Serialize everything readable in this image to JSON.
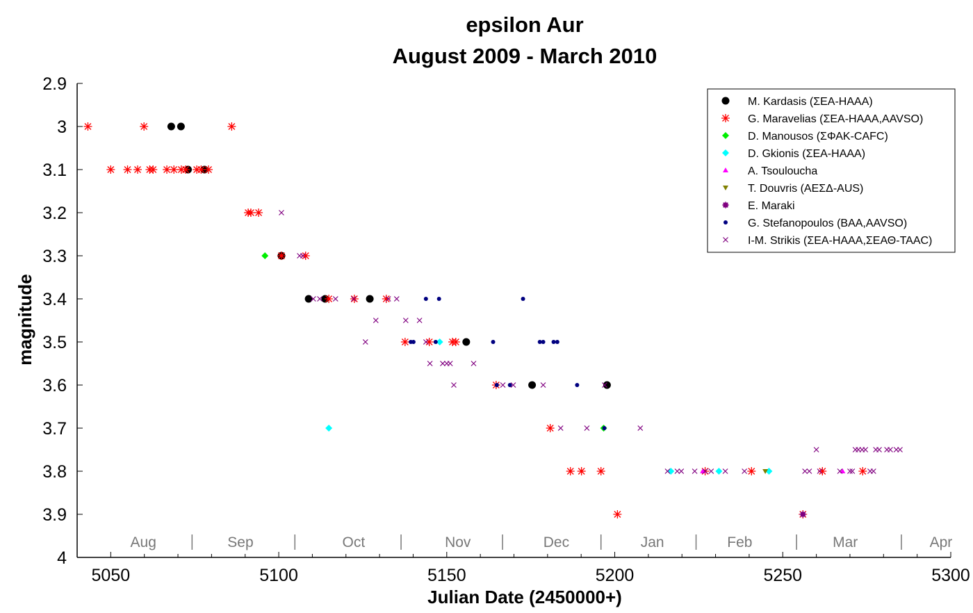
{
  "chart_data": {
    "type": "scatter",
    "title": "epsilon Aur",
    "subtitle": "August 2009 - March 2010",
    "xlabel": "Julian Date (2450000+)",
    "ylabel": "magnitude",
    "xlim": [
      5040,
      5300
    ],
    "ylim": [
      2.9,
      4.0
    ],
    "y_inverted": true,
    "xticks": [
      5050,
      5100,
      5150,
      5200,
      5250,
      5300
    ],
    "yticks": [
      2.9,
      3,
      3.1,
      3.2,
      3.3,
      3.4,
      3.5,
      3.6,
      3.7,
      3.8,
      3.9,
      4
    ],
    "ytick_labels": [
      "2.9",
      "3",
      "3.1",
      "3.2",
      "3.3",
      "3.4",
      "3.5",
      "3.6",
      "3.7",
      "3.8",
      "3.9",
      "4"
    ],
    "months": [
      {
        "label": "Aug",
        "x": 5059.7
      },
      {
        "label": "Sep",
        "x": 5088.6
      },
      {
        "label": "Oct",
        "x": 5122.3
      },
      {
        "label": "Nov",
        "x": 5153.3
      },
      {
        "label": "Dec",
        "x": 5182.6
      },
      {
        "label": "Jan",
        "x": 5211.2
      },
      {
        "label": "Feb",
        "x": 5237.2
      },
      {
        "label": "Mar",
        "x": 5268.6
      },
      {
        "label": "Apr",
        "x": 5297.1
      }
    ],
    "month_separators": [
      5074.2,
      5104.8,
      5136.4,
      5166.6,
      5195.9,
      5224.2,
      5254.1,
      5285.3
    ],
    "legend_position": "top-right",
    "series": [
      {
        "name": "M. Kardasis (ΣΕΑ-HAAA)",
        "marker": "circle",
        "color": "#000000",
        "points": [
          [
            5068,
            3.0
          ],
          [
            5070.9,
            3.0
          ],
          [
            5073,
            3.1
          ],
          [
            5077.9,
            3.1
          ],
          [
            5100.8,
            3.3
          ],
          [
            5108.9,
            3.4
          ],
          [
            5113.8,
            3.4
          ],
          [
            5127.1,
            3.4
          ],
          [
            5155.8,
            3.5
          ],
          [
            5175.4,
            3.6
          ],
          [
            5197.7,
            3.6
          ]
        ]
      },
      {
        "name": "G. Maravelias (ΣΕΑ-HAAA,AAVSO)",
        "marker": "asterisk",
        "color": "#ff0000",
        "points": [
          [
            5043.2,
            3.0
          ],
          [
            5059.9,
            3.0
          ],
          [
            5086,
            3.0
          ],
          [
            5050,
            3.1
          ],
          [
            5055,
            3.1
          ],
          [
            5058,
            3.1
          ],
          [
            5061.6,
            3.1
          ],
          [
            5062.6,
            3.1
          ],
          [
            5066.7,
            3.1
          ],
          [
            5068.8,
            3.1
          ],
          [
            5071,
            3.1
          ],
          [
            5072.3,
            3.1
          ],
          [
            5075.6,
            3.1
          ],
          [
            5076.9,
            3.1
          ],
          [
            5079.1,
            3.1
          ],
          [
            5090.9,
            3.2
          ],
          [
            5091.7,
            3.2
          ],
          [
            5094,
            3.2
          ],
          [
            5100.8,
            3.3
          ],
          [
            5108,
            3.3
          ],
          [
            5114.9,
            3.4
          ],
          [
            5122.5,
            3.4
          ],
          [
            5132,
            3.4
          ],
          [
            5137.6,
            3.5
          ],
          [
            5144.8,
            3.5
          ],
          [
            5151.7,
            3.5
          ],
          [
            5152.7,
            3.5
          ],
          [
            5164.7,
            3.6
          ],
          [
            5180.8,
            3.7
          ],
          [
            5186.8,
            3.8
          ],
          [
            5190.1,
            3.8
          ],
          [
            5195.9,
            3.8
          ],
          [
            5226.9,
            3.8
          ],
          [
            5240.7,
            3.8
          ],
          [
            5261.8,
            3.8
          ],
          [
            5273.8,
            3.8
          ],
          [
            5200.8,
            3.9
          ],
          [
            5256,
            3.9
          ]
        ]
      },
      {
        "name": "D. Manousos (ΣΦΑΚ-CAFC)",
        "marker": "diamond",
        "color": "#00ee00",
        "points": [
          [
            5095.9,
            3.3
          ],
          [
            5196.7,
            3.7
          ]
        ]
      },
      {
        "name": "D. Gkionis (ΣΕΑ-HAAA)",
        "marker": "diamond",
        "color": "#00ffff",
        "points": [
          [
            5114.9,
            3.7
          ],
          [
            5147.9,
            3.5
          ],
          [
            5216.7,
            3.8
          ],
          [
            5231,
            3.8
          ],
          [
            5245.9,
            3.8
          ]
        ]
      },
      {
        "name": "A. Tsouloucha",
        "marker": "triangle",
        "color": "#ff00ff",
        "points": [
          [
            5226.2,
            3.8
          ],
          [
            5267.8,
            3.8
          ]
        ]
      },
      {
        "name": "T. Douvris (ΑΕΣΔ-AUS)",
        "marker": "triangle-down",
        "color": "#808000",
        "points": [
          [
            5244.8,
            3.8
          ]
        ]
      },
      {
        "name": "E. Maraki",
        "marker": "square",
        "color": "#800080",
        "points": [
          [
            5256,
            3.9
          ]
        ]
      },
      {
        "name": "G. Stefanopoulos (BAA,AAVSO)",
        "marker": "dot",
        "color": "#000080",
        "points": [
          [
            5143.8,
            3.4
          ],
          [
            5147.7,
            3.4
          ],
          [
            5172.7,
            3.4
          ],
          [
            5139.3,
            3.5
          ],
          [
            5140.1,
            3.5
          ],
          [
            5146.7,
            3.5
          ],
          [
            5163.8,
            3.5
          ],
          [
            5177.7,
            3.5
          ],
          [
            5178.7,
            3.5
          ],
          [
            5181.8,
            3.5
          ],
          [
            5182.9,
            3.5
          ],
          [
            5164.9,
            3.6
          ],
          [
            5168.8,
            3.6
          ],
          [
            5188.8,
            3.6
          ],
          [
            5196.9,
            3.7
          ]
        ]
      },
      {
        "name": "I-M. Strikis (ΣΕΑ-HAAA,ΣΕΑΘ-TAAC)",
        "marker": "x",
        "color": "#800080",
        "points": [
          [
            5100.8,
            3.2
          ],
          [
            5106.2,
            3.3
          ],
          [
            5107.2,
            3.3
          ],
          [
            5110.3,
            3.4
          ],
          [
            5112.2,
            3.4
          ],
          [
            5116.9,
            3.4
          ],
          [
            5122.3,
            3.4
          ],
          [
            5132.6,
            3.4
          ],
          [
            5135.1,
            3.4
          ],
          [
            5128.9,
            3.45
          ],
          [
            5137.8,
            3.45
          ],
          [
            5141.9,
            3.45
          ],
          [
            5125.8,
            3.5
          ],
          [
            5143.8,
            3.5
          ],
          [
            5145,
            3.55
          ],
          [
            5148.8,
            3.55
          ],
          [
            5150,
            3.55
          ],
          [
            5151,
            3.55
          ],
          [
            5158,
            3.55
          ],
          [
            5152.1,
            3.6
          ],
          [
            5166.7,
            3.6
          ],
          [
            5169.8,
            3.6
          ],
          [
            5178.7,
            3.6
          ],
          [
            5197,
            3.6
          ],
          [
            5183.9,
            3.7
          ],
          [
            5191.7,
            3.7
          ],
          [
            5207.6,
            3.7
          ],
          [
            5215.7,
            3.8
          ],
          [
            5218.6,
            3.8
          ],
          [
            5219.8,
            3.8
          ],
          [
            5223.8,
            3.8
          ],
          [
            5226.9,
            3.8
          ],
          [
            5228.7,
            3.8
          ],
          [
            5232.9,
            3.8
          ],
          [
            5238.6,
            3.8
          ],
          [
            5256.6,
            3.8
          ],
          [
            5257.9,
            3.8
          ],
          [
            5261,
            3.8
          ],
          [
            5267,
            3.8
          ],
          [
            5270,
            3.8
          ],
          [
            5270.7,
            3.8
          ],
          [
            5276,
            3.8
          ],
          [
            5277,
            3.8
          ],
          [
            5260,
            3.75
          ],
          [
            5271.6,
            3.75
          ],
          [
            5272.5,
            3.75
          ],
          [
            5273.6,
            3.75
          ],
          [
            5274.6,
            3.75
          ],
          [
            5277.7,
            3.75
          ],
          [
            5278.7,
            3.75
          ],
          [
            5281,
            3.75
          ],
          [
            5282,
            3.75
          ],
          [
            5283.8,
            3.75
          ],
          [
            5284.9,
            3.75
          ]
        ]
      }
    ]
  }
}
